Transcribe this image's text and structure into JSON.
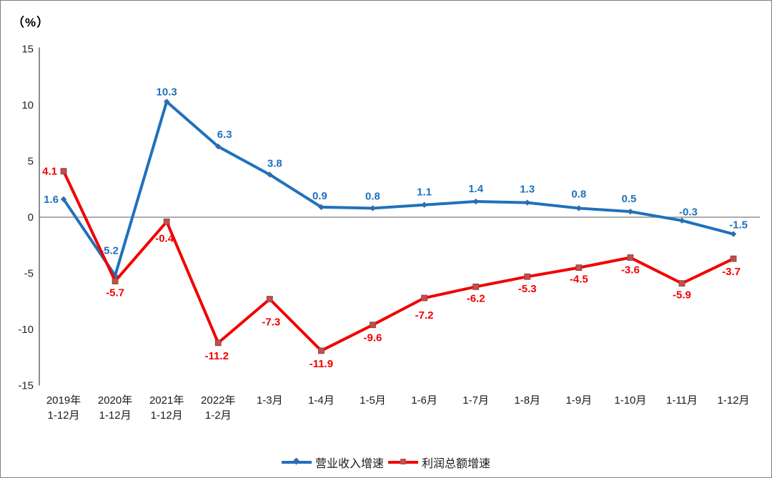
{
  "chart_data": {
    "type": "line",
    "unit": "（%）",
    "categories": [
      [
        "2019年",
        "1-12月"
      ],
      [
        "2020年",
        "1-12月"
      ],
      [
        "2021年",
        "1-12月"
      ],
      [
        "2022年",
        "1-2月"
      ],
      [
        "1-3月"
      ],
      [
        "1-4月"
      ],
      [
        "1-5月"
      ],
      [
        "1-6月"
      ],
      [
        "1-7月"
      ],
      [
        "1-8月"
      ],
      [
        "1-9月"
      ],
      [
        "1-10月"
      ],
      [
        "1-11月"
      ],
      [
        "1-12月"
      ]
    ],
    "series": [
      {
        "name": "营业收入增速",
        "color": "#1F71BC",
        "marker": "diamond",
        "marker_color": "#2F6DA8",
        "values": [
          1.6,
          -5.2,
          10.3,
          6.3,
          3.8,
          0.9,
          0.8,
          1.1,
          1.4,
          1.3,
          0.8,
          0.5,
          -0.3,
          -1.5
        ]
      },
      {
        "name": "利润总额增速",
        "color": "#F20000",
        "marker": "square",
        "marker_color": "#C0504D",
        "values": [
          4.1,
          -5.7,
          -0.4,
          -11.2,
          -7.3,
          -11.9,
          -9.6,
          -7.2,
          -6.2,
          -5.3,
          -4.5,
          -3.6,
          -5.9,
          -3.7
        ]
      }
    ],
    "ylim": [
      -15,
      15
    ],
    "yticks": [
      15,
      10,
      5,
      0,
      -5,
      -10,
      -15
    ],
    "grid": false,
    "zero_line": true,
    "legend_position": "bottom-center",
    "axis_color": "#808080",
    "tick_label_color": "#262626",
    "category_label_color": "#1a1a1a"
  }
}
